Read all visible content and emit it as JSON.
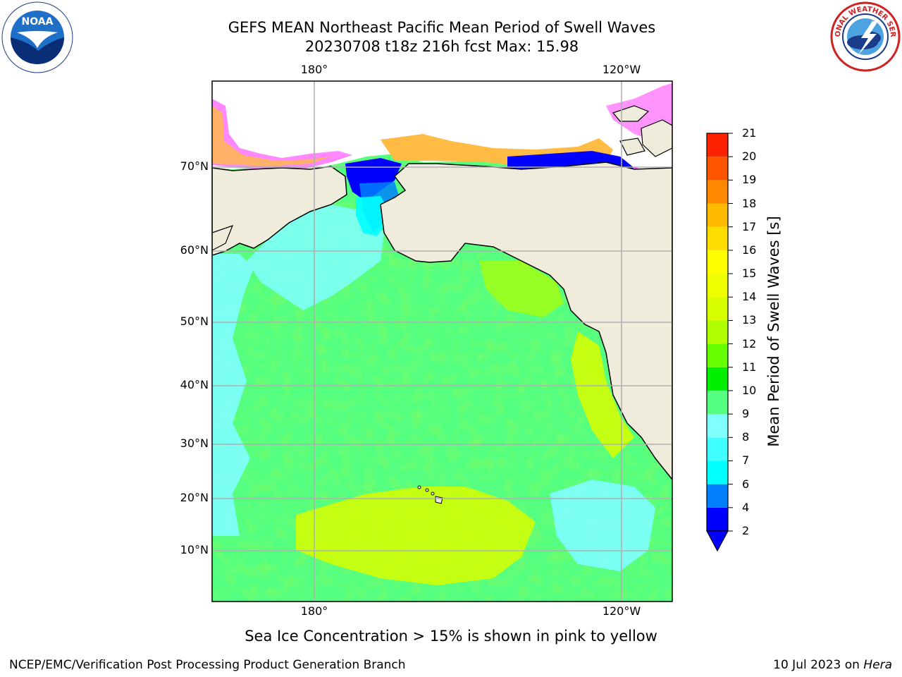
{
  "header": {
    "title_line1": "GEFS MEAN Northeast Pacific Mean Period of Swell Waves",
    "title_line2": "20230708 t18z 216h fcst   Max: 15.98"
  },
  "logos": {
    "left": {
      "name": "noaa-logo",
      "text": "NOAA"
    },
    "right": {
      "name": "nws-logo",
      "text": "NATIONAL WEATHER SERVICE"
    }
  },
  "map": {
    "lon_labels_top": [
      "180°",
      "120°W"
    ],
    "lon_labels_bottom": [
      "180°",
      "120°W"
    ],
    "lat_labels": [
      "70°N",
      "60°N",
      "50°N",
      "40°N",
      "30°N",
      "20°N",
      "10°N"
    ],
    "land_color": "#efecdc",
    "ocean_base_color": "#55ff7f"
  },
  "colorbar": {
    "title": "Mean Period of Swell Waves [s]",
    "labels": [
      "2",
      "4",
      "6",
      "7",
      "8",
      "9",
      "10",
      "11",
      "12",
      "13",
      "14",
      "15",
      "16",
      "17",
      "18",
      "19",
      "20",
      "21"
    ],
    "colors": [
      "#0000ff",
      "#0080ff",
      "#00ffff",
      "#40ffff",
      "#80ffff",
      "#55ff7f",
      "#00ef00",
      "#66ff00",
      "#b0ff00",
      "#d8ff00",
      "#f0ff00",
      "#ffff00",
      "#ffdd00",
      "#ffbb00",
      "#ff8800",
      "#ff5500",
      "#ff2200"
    ]
  },
  "footer": {
    "sea_ice_note": "Sea Ice Concentration > 15% is shown in pink to yellow",
    "credit": "NCEP/EMC/Verification Post Processing Product Generation Branch",
    "date": "10 Jul 2023 on ",
    "machine": "Hera"
  }
}
